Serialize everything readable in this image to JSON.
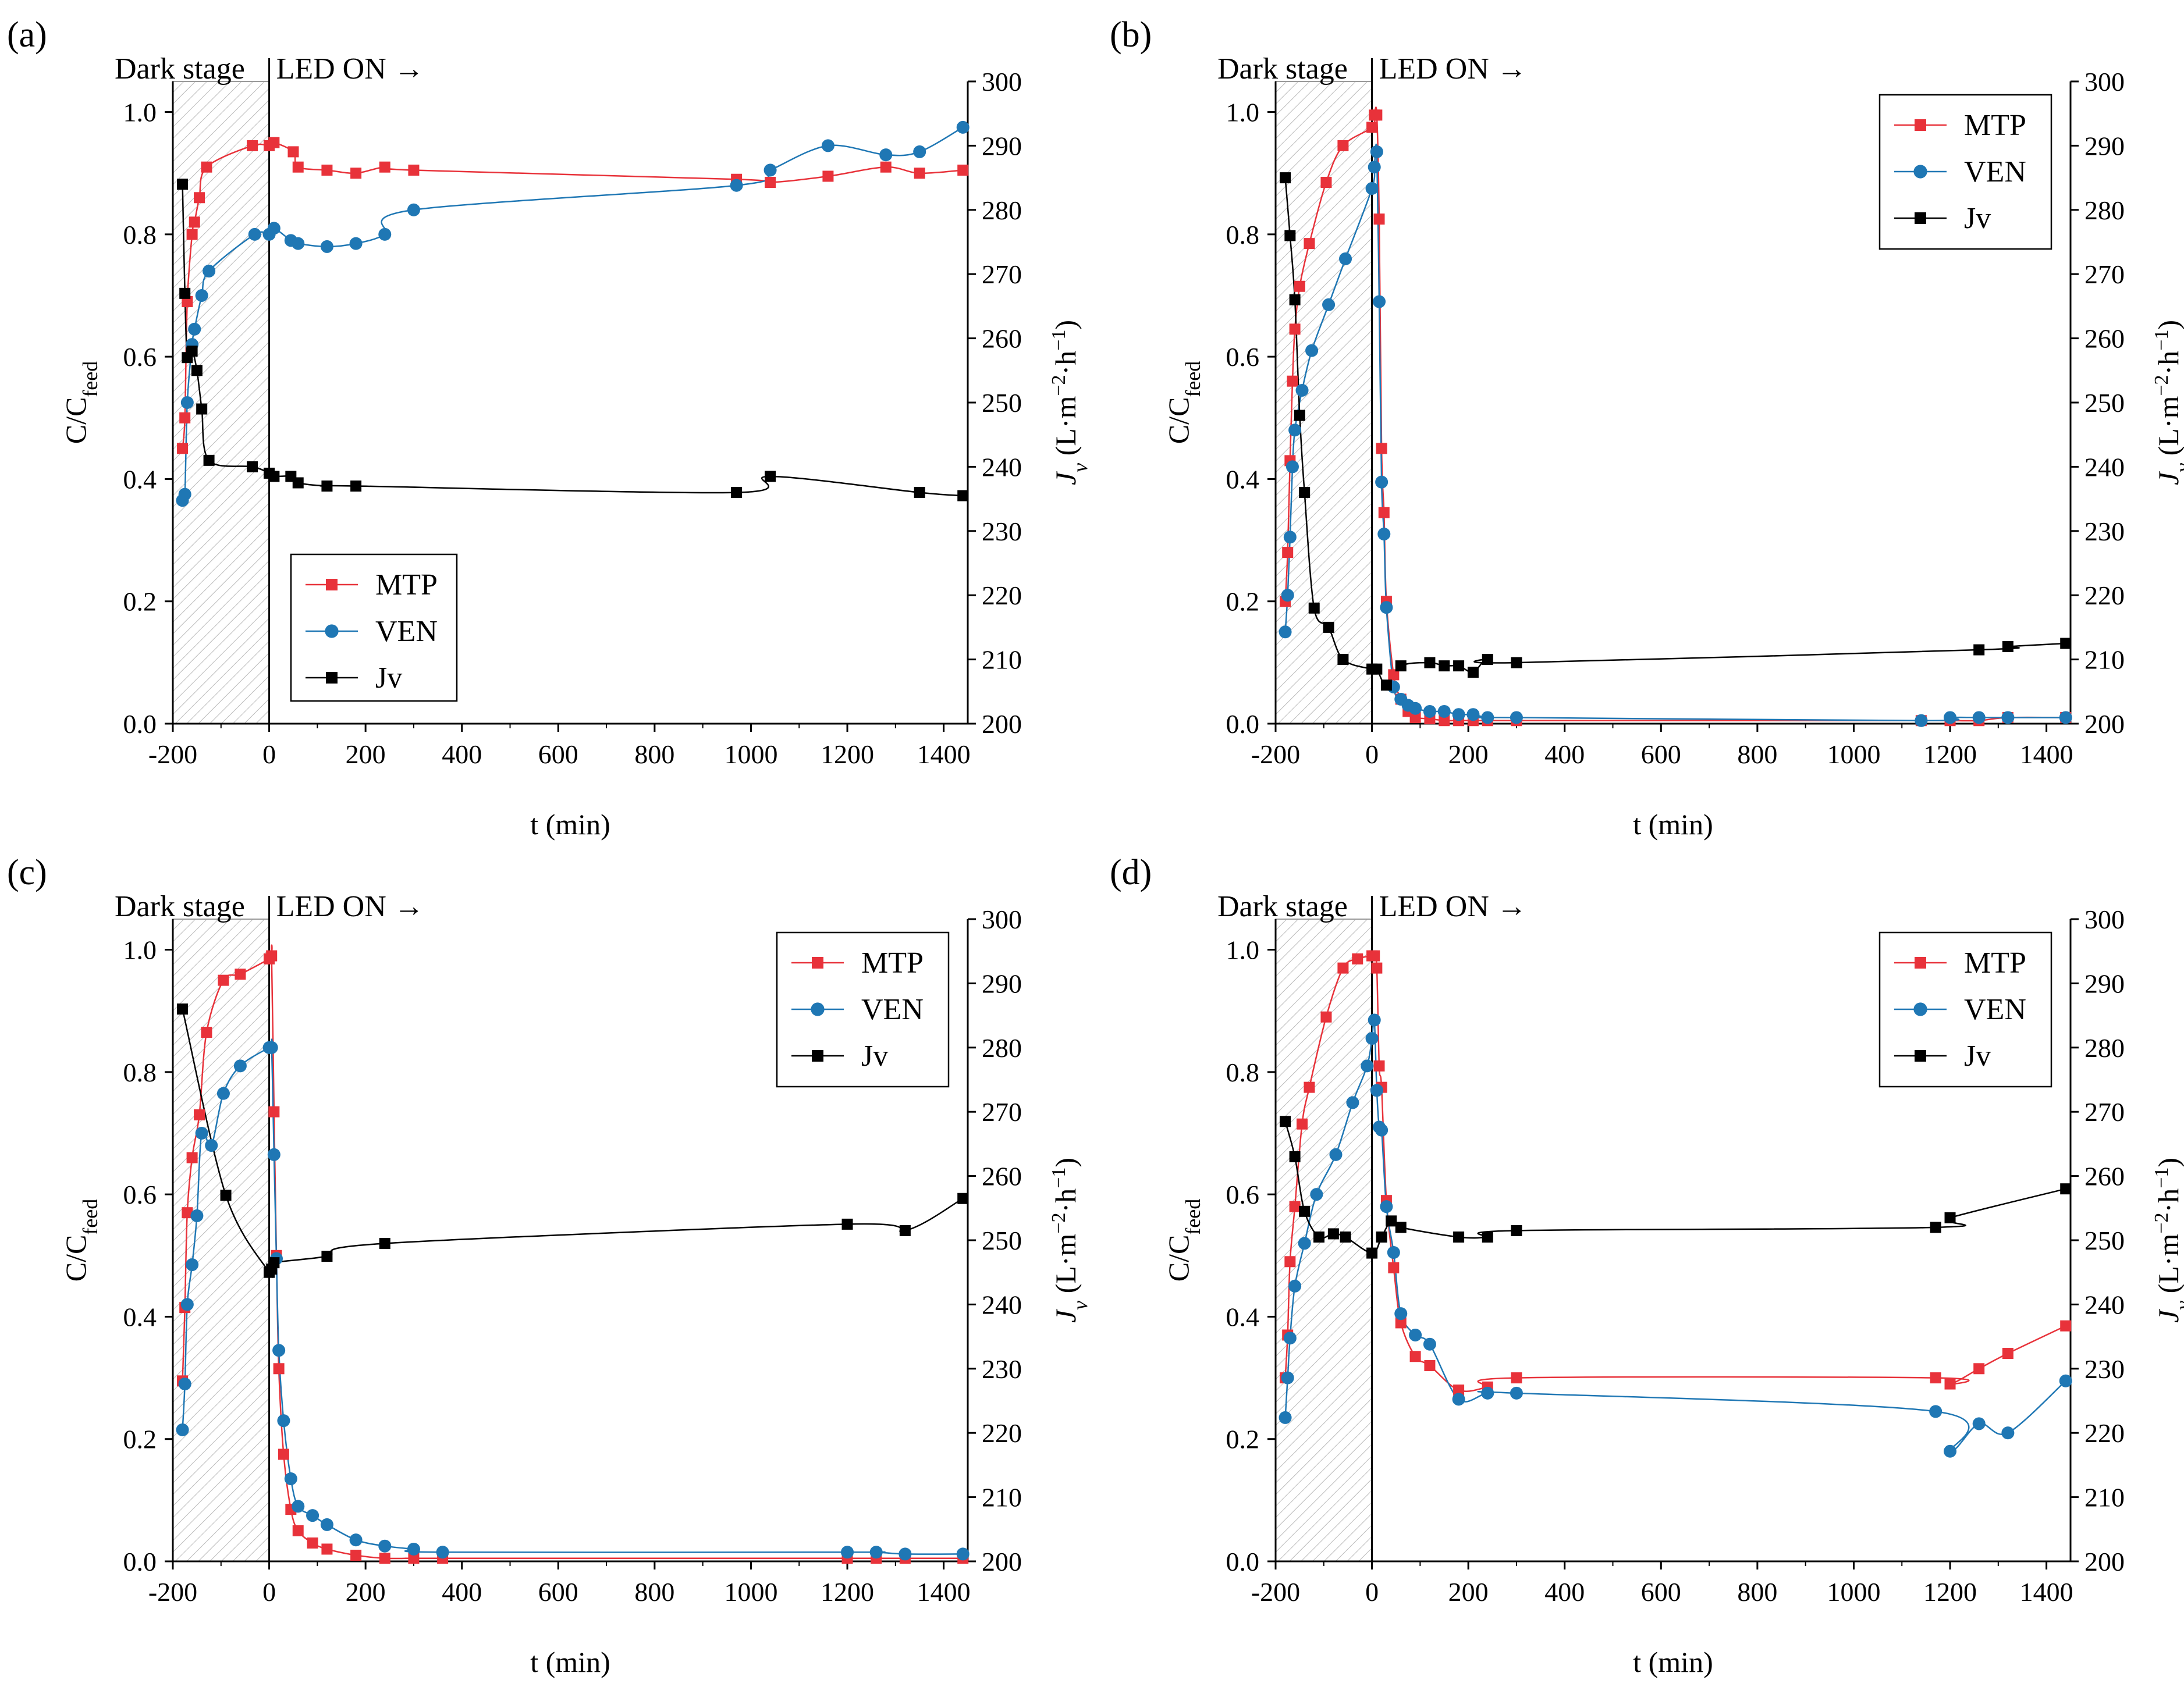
{
  "figure": {
    "colors": {
      "MTP": "#e8323a",
      "VEN": "#1f77b4",
      "Jv": "#000000"
    },
    "dark_label": "Dark stage",
    "led_label": "LED ON →"
  },
  "chart_data": [
    {
      "panel": "(a)",
      "type": "line",
      "xlabel": "t (min)",
      "ylabel_left": "C/C_feed",
      "ylabel_right": "J_v (L·m^-2·h^-1)",
      "xlim": [
        -200,
        1450
      ],
      "ylim_left": [
        0,
        1.05
      ],
      "ylim_right": [
        200,
        300
      ],
      "x_ticks": [
        -200,
        0,
        200,
        400,
        600,
        800,
        1000,
        1200,
        1400
      ],
      "x_tick_labels": [
        "-200",
        "0",
        "200",
        "400",
        "600",
        "800",
        "1000",
        "1200",
        "1400"
      ],
      "y_ticks_left": [
        0,
        0.2,
        0.4,
        0.6,
        0.8,
        1.0
      ],
      "y_tick_labels_left": [
        "0.0",
        "0.2",
        "0.4",
        "0.6",
        "0.8",
        "1.0"
      ],
      "y_ticks_right": [
        200,
        210,
        220,
        230,
        240,
        250,
        260,
        270,
        280,
        290,
        300
      ],
      "dark_stage": [
        -200,
        0
      ],
      "legend_position": "bottom-left",
      "legend": [
        "MTP",
        "VEN",
        "Jv"
      ],
      "series": [
        {
          "name": "MTP",
          "axis": "left",
          "x": [
            -180,
            -175,
            -170,
            -160,
            -155,
            -145,
            -130,
            -35,
            0,
            10,
            50,
            60,
            120,
            180,
            240,
            300,
            970,
            1040,
            1160,
            1280,
            1350,
            1440
          ],
          "y": [
            0.45,
            0.5,
            0.69,
            0.8,
            0.82,
            0.86,
            0.91,
            0.945,
            0.945,
            0.95,
            0.935,
            0.91,
            0.905,
            0.9,
            0.91,
            0.905,
            0.89,
            0.885,
            0.895,
            0.91,
            0.9,
            0.905
          ]
        },
        {
          "name": "VEN",
          "axis": "left",
          "x": [
            -180,
            -175,
            -170,
            -160,
            -155,
            -140,
            -125,
            -30,
            0,
            10,
            45,
            60,
            120,
            180,
            240,
            300,
            970,
            1040,
            1160,
            1280,
            1350,
            1440
          ],
          "y": [
            0.365,
            0.375,
            0.525,
            0.62,
            0.645,
            0.7,
            0.74,
            0.8,
            0.8,
            0.81,
            0.79,
            0.785,
            0.78,
            0.785,
            0.8,
            0.84,
            0.88,
            0.905,
            0.945,
            0.93,
            0.935,
            0.975
          ]
        },
        {
          "name": "Jv",
          "axis": "right",
          "x": [
            -180,
            -175,
            -170,
            -160,
            -150,
            -140,
            -125,
            -35,
            0,
            10,
            45,
            60,
            120,
            180,
            970,
            1040,
            1350,
            1440
          ],
          "y": [
            284,
            267,
            257,
            258,
            255,
            249,
            241,
            240,
            239,
            238.5,
            238.5,
            237.5,
            237,
            237,
            236,
            238.5,
            236,
            235.5
          ]
        }
      ]
    },
    {
      "panel": "(b)",
      "type": "line",
      "xlabel": "t (min)",
      "ylabel_left": "C/C_feed",
      "ylabel_right": "J_v (L·m^-2·h^-1)",
      "xlim": [
        -200,
        1450
      ],
      "ylim_left": [
        0,
        1.05
      ],
      "ylim_right": [
        200,
        300
      ],
      "x_ticks": [
        -200,
        0,
        200,
        400,
        600,
        800,
        1000,
        1200,
        1400
      ],
      "x_tick_labels": [
        "-200",
        "0",
        "200",
        "400",
        "600",
        "800",
        "1000",
        "1200",
        "1400"
      ],
      "y_ticks_left": [
        0,
        0.2,
        0.4,
        0.6,
        0.8,
        1.0
      ],
      "y_tick_labels_left": [
        "0.0",
        "0.2",
        "0.4",
        "0.6",
        "0.8",
        "1.0"
      ],
      "y_ticks_right": [
        200,
        210,
        220,
        230,
        240,
        250,
        260,
        270,
        280,
        290,
        300
      ],
      "dark_stage": [
        -200,
        0
      ],
      "legend_position": "top-right",
      "legend": [
        "MTP",
        "VEN",
        "Jv"
      ],
      "series": [
        {
          "name": "MTP",
          "axis": "left",
          "x": [
            -180,
            -175,
            -170,
            -165,
            -160,
            -150,
            -130,
            -95,
            -60,
            0,
            5,
            10,
            15,
            20,
            25,
            30,
            45,
            60,
            75,
            90,
            120,
            150,
            180,
            210,
            240,
            300,
            1140,
            1200,
            1260,
            1320,
            1440
          ],
          "y": [
            0.2,
            0.28,
            0.43,
            0.56,
            0.645,
            0.715,
            0.785,
            0.885,
            0.945,
            0.975,
            0.995,
            0.995,
            0.825,
            0.45,
            0.345,
            0.2,
            0.08,
            0.04,
            0.02,
            0.01,
            0.008,
            0.005,
            0.005,
            0.005,
            0.005,
            0.005,
            0.005,
            0.005,
            0.005,
            0.01,
            0.01
          ]
        },
        {
          "name": "VEN",
          "axis": "left",
          "x": [
            -180,
            -175,
            -170,
            -165,
            -160,
            -145,
            -125,
            -90,
            -55,
            0,
            5,
            10,
            15,
            20,
            25,
            30,
            45,
            60,
            75,
            90,
            120,
            150,
            180,
            210,
            240,
            300,
            1140,
            1200,
            1260,
            1320,
            1440
          ],
          "y": [
            0.15,
            0.21,
            0.305,
            0.42,
            0.48,
            0.545,
            0.61,
            0.685,
            0.76,
            0.875,
            0.91,
            0.935,
            0.69,
            0.395,
            0.31,
            0.19,
            0.06,
            0.04,
            0.03,
            0.025,
            0.02,
            0.02,
            0.015,
            0.015,
            0.01,
            0.01,
            0.005,
            0.01,
            0.01,
            0.01,
            0.01
          ]
        },
        {
          "name": "Jv",
          "axis": "right",
          "x": [
            -180,
            -170,
            -160,
            -150,
            -140,
            -120,
            -90,
            -60,
            0,
            10,
            30,
            60,
            120,
            150,
            180,
            210,
            240,
            300,
            1260,
            1320,
            1440
          ],
          "y": [
            285,
            276,
            266,
            248,
            236,
            218,
            215,
            210,
            208.5,
            208.5,
            206,
            209,
            209.5,
            209,
            209,
            208,
            210,
            209.5,
            211.5,
            212,
            212.5
          ]
        }
      ]
    },
    {
      "panel": "(c)",
      "type": "line",
      "xlabel": "t (min)",
      "ylabel_left": "C/C_feed",
      "ylabel_right": "J_v (L·m^-2·h^-1)",
      "xlim": [
        -200,
        1450
      ],
      "ylim_left": [
        0,
        1.05
      ],
      "ylim_right": [
        200,
        300
      ],
      "x_ticks": [
        -200,
        0,
        200,
        400,
        600,
        800,
        1000,
        1200,
        1400
      ],
      "x_tick_labels": [
        "-200",
        "0",
        "200",
        "400",
        "600",
        "800",
        "1000",
        "1200",
        "1400"
      ],
      "y_ticks_left": [
        0,
        0.2,
        0.4,
        0.6,
        0.8,
        1.0
      ],
      "y_tick_labels_left": [
        "0.0",
        "0.2",
        "0.4",
        "0.6",
        "0.8",
        "1.0"
      ],
      "y_ticks_right": [
        200,
        210,
        220,
        230,
        240,
        250,
        260,
        270,
        280,
        290,
        300
      ],
      "dark_stage": [
        -200,
        0
      ],
      "legend_position": "top-right",
      "legend": [
        "MTP",
        "VEN",
        "Jv"
      ],
      "series": [
        {
          "name": "MTP",
          "axis": "left",
          "x": [
            -180,
            -175,
            -170,
            -160,
            -145,
            -130,
            -95,
            -60,
            0,
            5,
            10,
            15,
            20,
            30,
            45,
            60,
            90,
            120,
            180,
            240,
            300,
            360,
            1200,
            1260,
            1320,
            1440
          ],
          "y": [
            0.295,
            0.415,
            0.57,
            0.66,
            0.73,
            0.865,
            0.95,
            0.96,
            0.985,
            0.99,
            0.735,
            0.5,
            0.315,
            0.175,
            0.085,
            0.05,
            0.03,
            0.02,
            0.01,
            0.005,
            0.005,
            0.005,
            0.005,
            0.005,
            0.005,
            0.005
          ]
        },
        {
          "name": "VEN",
          "axis": "left",
          "x": [
            -180,
            -175,
            -170,
            -160,
            -150,
            -140,
            -120,
            -95,
            -60,
            0,
            5,
            10,
            15,
            20,
            30,
            45,
            60,
            90,
            120,
            180,
            240,
            300,
            360,
            1200,
            1260,
            1320,
            1440
          ],
          "y": [
            0.215,
            0.29,
            0.42,
            0.485,
            0.565,
            0.7,
            0.68,
            0.765,
            0.81,
            0.84,
            0.84,
            0.665,
            0.495,
            0.345,
            0.23,
            0.135,
            0.09,
            0.075,
            0.06,
            0.035,
            0.025,
            0.02,
            0.015,
            0.015,
            0.015,
            0.012,
            0.012
          ]
        },
        {
          "name": "Jv",
          "axis": "right",
          "x": [
            -180,
            -90,
            0,
            5,
            10,
            120,
            240,
            1200,
            1320,
            1440
          ],
          "y": [
            286,
            257,
            245,
            245.5,
            246.5,
            247.5,
            249.5,
            252.5,
            251.5,
            256.5
          ]
        }
      ]
    },
    {
      "panel": "(d)",
      "type": "line",
      "xlabel": "t (min)",
      "ylabel_left": "C/C_feed",
      "ylabel_right": "J_v (L·m^-2·h^-1)",
      "xlim": [
        -200,
        1450
      ],
      "ylim_left": [
        0,
        1.05
      ],
      "ylim_right": [
        200,
        300
      ],
      "x_ticks": [
        -200,
        0,
        200,
        400,
        600,
        800,
        1000,
        1200,
        1400
      ],
      "x_tick_labels": [
        "-200",
        "0",
        "200",
        "400",
        "600",
        "800",
        "1000",
        "1200",
        "1400"
      ],
      "y_ticks_left": [
        0,
        0.2,
        0.4,
        0.6,
        0.8,
        1.0
      ],
      "y_tick_labels_left": [
        "0.0",
        "0.2",
        "0.4",
        "0.6",
        "0.8",
        "1.0"
      ],
      "y_ticks_right": [
        200,
        210,
        220,
        230,
        240,
        250,
        260,
        270,
        280,
        290,
        300
      ],
      "dark_stage": [
        -200,
        0
      ],
      "legend_position": "top-right",
      "legend": [
        "MTP",
        "VEN",
        "Jv"
      ],
      "series": [
        {
          "name": "MTP",
          "axis": "left",
          "x": [
            -180,
            -175,
            -170,
            -160,
            -145,
            -130,
            -95,
            -60,
            -30,
            0,
            5,
            10,
            15,
            20,
            30,
            45,
            60,
            90,
            120,
            180,
            240,
            300,
            1170,
            1200,
            1260,
            1320,
            1440
          ],
          "y": [
            0.3,
            0.37,
            0.49,
            0.58,
            0.715,
            0.775,
            0.89,
            0.97,
            0.985,
            0.99,
            0.99,
            0.97,
            0.81,
            0.775,
            0.59,
            0.48,
            0.39,
            0.335,
            0.32,
            0.28,
            0.285,
            0.3,
            0.3,
            0.29,
            0.315,
            0.34,
            0.385
          ]
        },
        {
          "name": "VEN",
          "axis": "left",
          "x": [
            -180,
            -175,
            -170,
            -160,
            -140,
            -115,
            -75,
            -40,
            -10,
            0,
            5,
            10,
            15,
            20,
            30,
            45,
            60,
            90,
            120,
            180,
            240,
            300,
            1170,
            1200,
            1260,
            1320,
            1440
          ],
          "y": [
            0.235,
            0.3,
            0.365,
            0.45,
            0.52,
            0.6,
            0.665,
            0.75,
            0.81,
            0.855,
            0.885,
            0.77,
            0.71,
            0.705,
            0.58,
            0.505,
            0.405,
            0.37,
            0.355,
            0.265,
            0.275,
            0.275,
            0.245,
            0.18,
            0.225,
            0.21,
            0.295
          ]
        },
        {
          "name": "Jv",
          "axis": "right",
          "x": [
            -180,
            -160,
            -140,
            -110,
            -80,
            -55,
            0,
            20,
            40,
            60,
            180,
            240,
            300,
            1170,
            1200,
            1440
          ],
          "y": [
            268.5,
            263,
            254.5,
            250.5,
            251,
            250.5,
            248,
            250.5,
            253,
            252,
            250.5,
            250.5,
            251.5,
            252,
            253.5,
            258
          ]
        }
      ]
    }
  ]
}
